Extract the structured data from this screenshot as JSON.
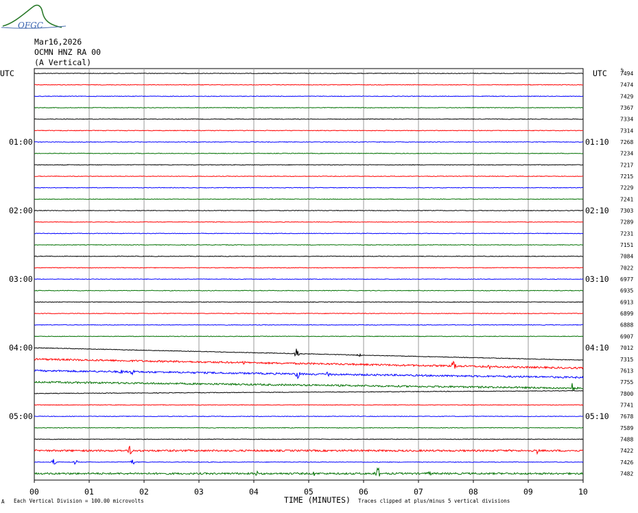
{
  "header": {
    "logo_text": "OFGC",
    "date": "Mar16,2026",
    "station": "OCMN HNZ RA 00",
    "component": "(A Vertical)"
  },
  "left_axis_title": "UTC",
  "right_axis_title": "UTC",
  "right_values_title": "%",
  "footer": {
    "scale_note": "Each Vertical Division =  100.00 microvolts",
    "clip_note": "Traces clipped at plus/minus 5 vertical divisions",
    "corner_mark": "A"
  },
  "chart_data": {
    "type": "line",
    "title": "",
    "xlabel": "TIME (MINUTES)",
    "ylabel": "UTC",
    "xlim": [
      0,
      10
    ],
    "x_ticks": [
      "00",
      "01",
      "02",
      "03",
      "04",
      "05",
      "06",
      "07",
      "08",
      "09",
      "10"
    ],
    "grid": true,
    "trace_count": 36,
    "trace_colors": [
      "#000000",
      "#ff0000",
      "#0000ff",
      "#007000"
    ],
    "left_hour_labels": [
      {
        "trace": 6,
        "label": "01:00"
      },
      {
        "trace": 12,
        "label": "02:00"
      },
      {
        "trace": 18,
        "label": "03:00"
      },
      {
        "trace": 24,
        "label": "04:00"
      },
      {
        "trace": 30,
        "label": "05:00"
      }
    ],
    "right_hour_labels": [
      {
        "trace": 6,
        "label": "01:10"
      },
      {
        "trace": 12,
        "label": "02:10"
      },
      {
        "trace": 18,
        "label": "03:10"
      },
      {
        "trace": 24,
        "label": "04:10"
      },
      {
        "trace": 30,
        "label": "05:10"
      }
    ],
    "right_values": [
      "7494",
      "7474",
      "7429",
      "7367",
      "7334",
      "7314",
      "7268",
      "7234",
      "7217",
      "7215",
      "7229",
      "7241",
      "7303",
      "7289",
      "7231",
      "7151",
      "7084",
      "7022",
      "6977",
      "6935",
      "6913",
      "6899",
      "6888",
      "6907",
      "7012",
      "7315",
      "7613",
      "7755",
      "7800",
      "7741",
      "7678",
      "7589",
      "7488",
      "7422",
      "7426",
      "7482"
    ],
    "events": [
      {
        "trace": 24,
        "minute": 4.78,
        "amplitude": 8
      },
      {
        "trace": 24,
        "minute": 5.92,
        "amplitude": 3
      },
      {
        "trace": 25,
        "minute": 3.82,
        "amplitude": 3
      },
      {
        "trace": 25,
        "minute": 7.65,
        "amplitude": 9
      },
      {
        "trace": 25,
        "minute": 8.3,
        "amplitude": 4
      },
      {
        "trace": 26,
        "minute": 1.6,
        "amplitude": 4
      },
      {
        "trace": 26,
        "minute": 1.8,
        "amplitude": 5
      },
      {
        "trace": 26,
        "minute": 4.8,
        "amplitude": 8
      },
      {
        "trace": 26,
        "minute": 5.35,
        "amplitude": 5
      },
      {
        "trace": 27,
        "minute": 9.8,
        "amplitude": 10
      },
      {
        "trace": 33,
        "minute": 1.75,
        "amplitude": 9
      },
      {
        "trace": 33,
        "minute": 9.15,
        "amplitude": 5
      },
      {
        "trace": 34,
        "minute": 0.35,
        "amplitude": 5
      },
      {
        "trace": 34,
        "minute": 1.78,
        "amplitude": 8
      },
      {
        "trace": 34,
        "minute": 0.75,
        "amplitude": 4
      },
      {
        "trace": 35,
        "minute": 6.25,
        "amplitude": 12
      },
      {
        "trace": 35,
        "minute": 4.05,
        "amplitude": 4
      },
      {
        "trace": 35,
        "minute": 5.1,
        "amplitude": 4
      },
      {
        "trace": 35,
        "minute": 7.2,
        "amplitude": 3
      }
    ],
    "noisy_traces": [
      25,
      26,
      27,
      33,
      35
    ],
    "sloped_traces": [
      {
        "trace": 24,
        "drop": 18
      },
      {
        "trace": 25,
        "drop": 13
      },
      {
        "trace": 26,
        "drop": 10
      },
      {
        "trace": 27,
        "drop": 9
      },
      {
        "trace": 28,
        "drop": -4
      }
    ]
  }
}
